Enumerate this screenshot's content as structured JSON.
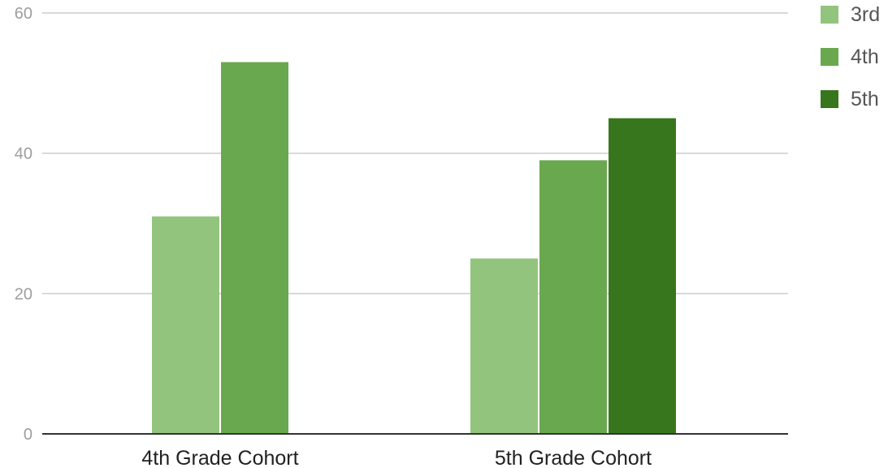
{
  "chart_data": {
    "type": "bar",
    "categories": [
      "4th Grade Cohort",
      "5th Grade Cohort"
    ],
    "series": [
      {
        "name": "3rd",
        "values": [
          31,
          25
        ],
        "color": "#93c47d"
      },
      {
        "name": "4th",
        "values": [
          53,
          39
        ],
        "color": "#6aa84f"
      },
      {
        "name": "5th",
        "values": [
          null,
          45
        ],
        "color": "#38761d"
      }
    ],
    "ylim": [
      0,
      60
    ],
    "yticks": [
      0,
      20,
      40,
      60
    ],
    "grid": true,
    "legend_position": "top-right",
    "title": "",
    "xlabel": "",
    "ylabel": ""
  }
}
